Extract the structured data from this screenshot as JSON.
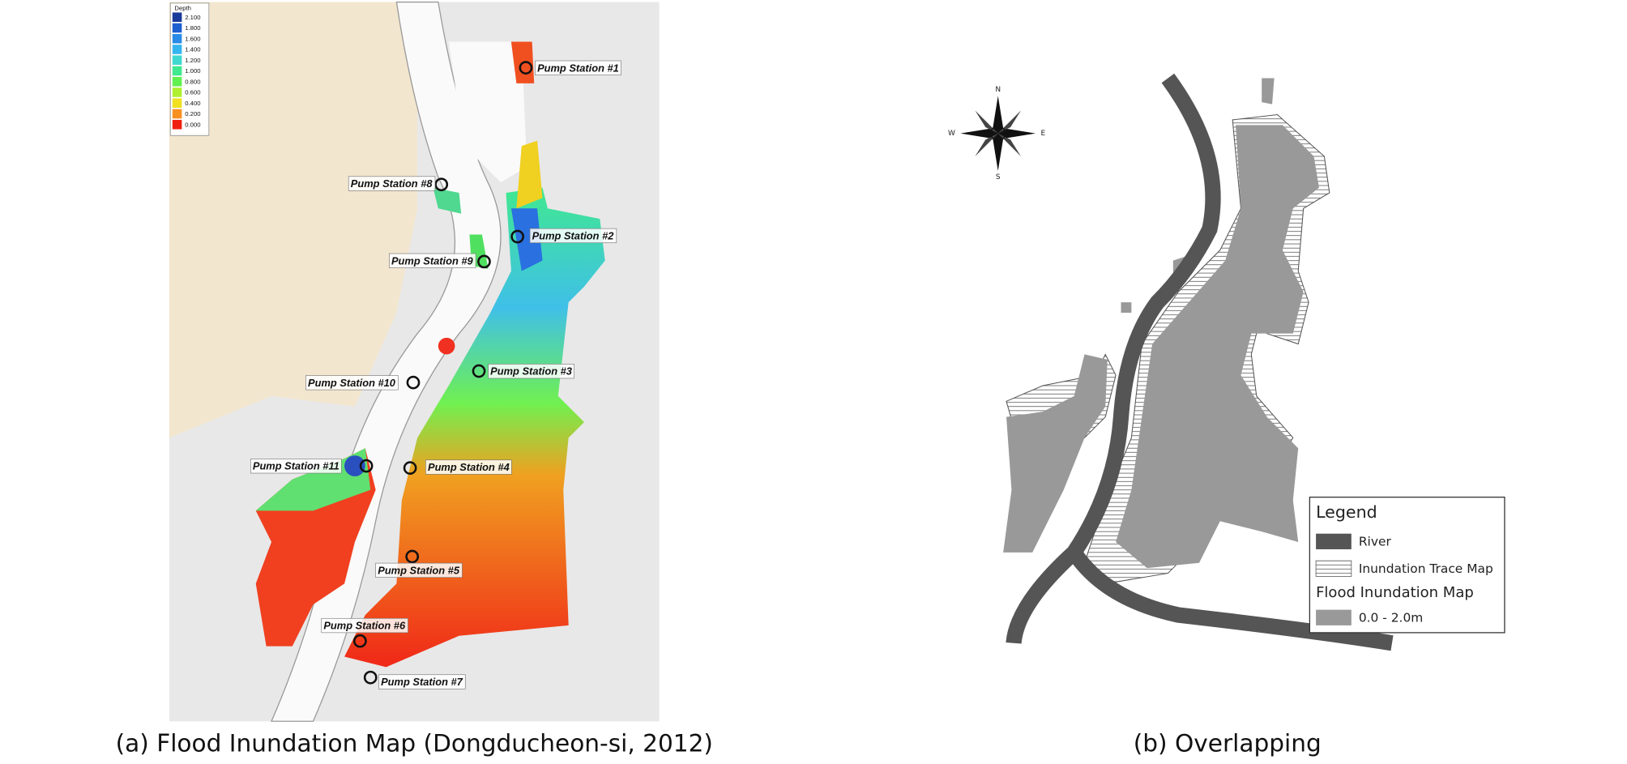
{
  "panels": [
    {
      "caption": "(a) Flood Inundation Map (Dongducheon-si, 2012)",
      "depth_legend": {
        "title": "Depth",
        "levels": [
          "2.100",
          "1.800",
          "1.600",
          "1.400",
          "1.200",
          "1.000",
          "0.800",
          "0.600",
          "0.400",
          "0.200",
          "0.000"
        ]
      },
      "pump_stations": [
        "Pump Station #1",
        "Pump Station #2",
        "Pump Station #3",
        "Pump Station #4",
        "Pump Station #5",
        "Pump Station #6",
        "Pump Station #7",
        "Pump Station #8",
        "Pump Station #9",
        "Pump Station #10",
        "Pump Station #11"
      ]
    },
    {
      "caption": "(b) Overlapping",
      "compass": {
        "north": "N",
        "east": "E",
        "south": "S",
        "west": "W"
      },
      "legend": {
        "title": "Legend",
        "items": [
          "River",
          "Inundation Trace Map",
          "Flood Inundation Map",
          "0.0 - 2.0m"
        ]
      }
    }
  ]
}
